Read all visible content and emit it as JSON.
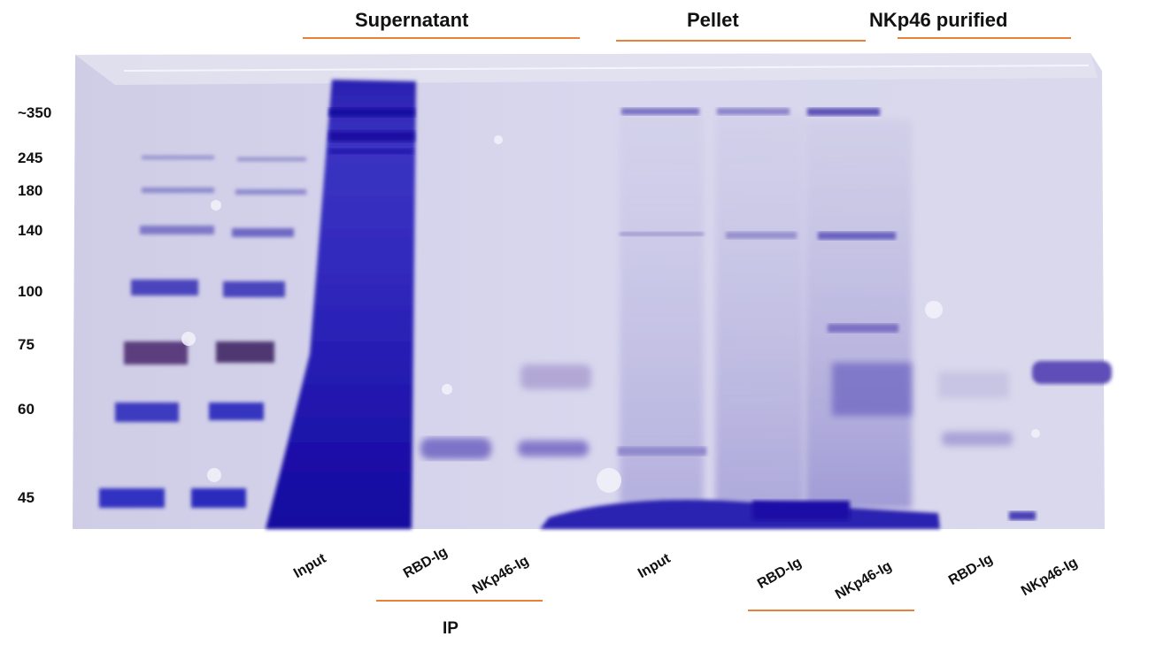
{
  "headers": {
    "supernatant": "Supernatant",
    "pellet": "Pellet",
    "nkp46_purified": "NKp46 purified"
  },
  "markers": [
    "~350",
    "245",
    "180",
    "140",
    "100",
    "75",
    "60",
    "45"
  ],
  "lanes": {
    "sup_input": "Input",
    "sup_rbd": "RBD-Ig",
    "sup_nkp46": "NKp46-Ig",
    "pel_input": "Input",
    "pel_rbd": "RBD-Ig",
    "pel_nkp46": "NKp46-Ig",
    "pur_rbd": "RBD-Ig",
    "pur_nkp46": "NKp46-Ig"
  },
  "ip_label": "IP",
  "colors": {
    "accent": "#e8823a",
    "stain": "#2a1fa8",
    "gel": "#d9d8ee"
  }
}
